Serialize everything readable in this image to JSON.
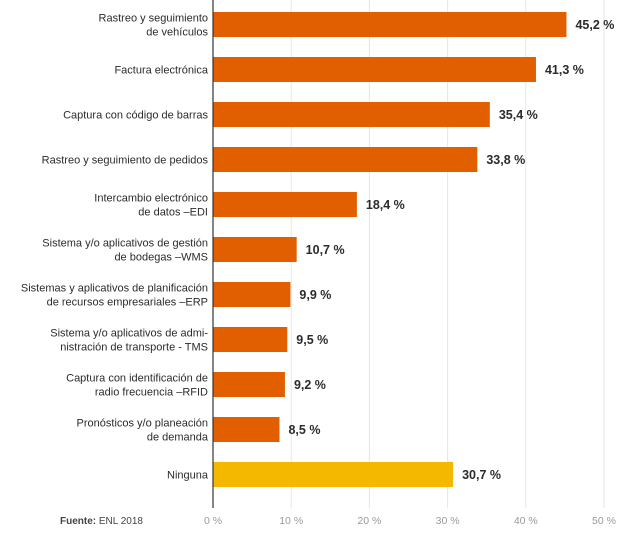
{
  "chart_data": {
    "type": "bar",
    "orientation": "horizontal",
    "categories": [
      [
        "Rastreo y seguimiento",
        "de vehículos"
      ],
      [
        "Factura electrónica"
      ],
      [
        "Captura con código de barras"
      ],
      [
        "Rastreo y seguimiento de pedidos"
      ],
      [
        "Intercambio electrónico",
        "de datos –EDI"
      ],
      [
        "Sistema y/o aplicativos de gestión",
        "de bodegas –WMS"
      ],
      [
        "Sistemas y aplicativos de planificación",
        "de recursos empresariales –ERP"
      ],
      [
        "Sistema y/o aplicativos de admi-",
        "nistración de transporte - TMS"
      ],
      [
        "Captura con identificación de",
        "radio frecuencia –RFID"
      ],
      [
        "Pronósticos y/o planeación",
        "de demanda"
      ],
      [
        "Ninguna"
      ]
    ],
    "values": [
      45.2,
      41.3,
      35.4,
      33.8,
      18.4,
      10.7,
      9.9,
      9.5,
      9.2,
      8.5,
      30.7
    ],
    "value_labels": [
      "45,2 %",
      "41,3 %",
      "35,4 %",
      "33,8 %",
      "18,4 %",
      "10,7 %",
      "9,9 %",
      "9,5 %",
      "9,2 %",
      "8,5 %",
      "30,7 %"
    ],
    "highlight_index": 10,
    "xlim": [
      0,
      50
    ],
    "x_ticks": [
      0,
      10,
      20,
      30,
      40,
      50
    ],
    "x_tick_labels": [
      "0 %",
      "10 %",
      "20 %",
      "30 %",
      "40 %",
      "50 %"
    ],
    "grid": true,
    "colors": {
      "bar": "#e25f00",
      "highlight": "#f5b800",
      "grid": "#e6e6e6",
      "axis": "#333333"
    }
  },
  "source": {
    "label": "Fuente:",
    "text": "ENL 2018"
  }
}
